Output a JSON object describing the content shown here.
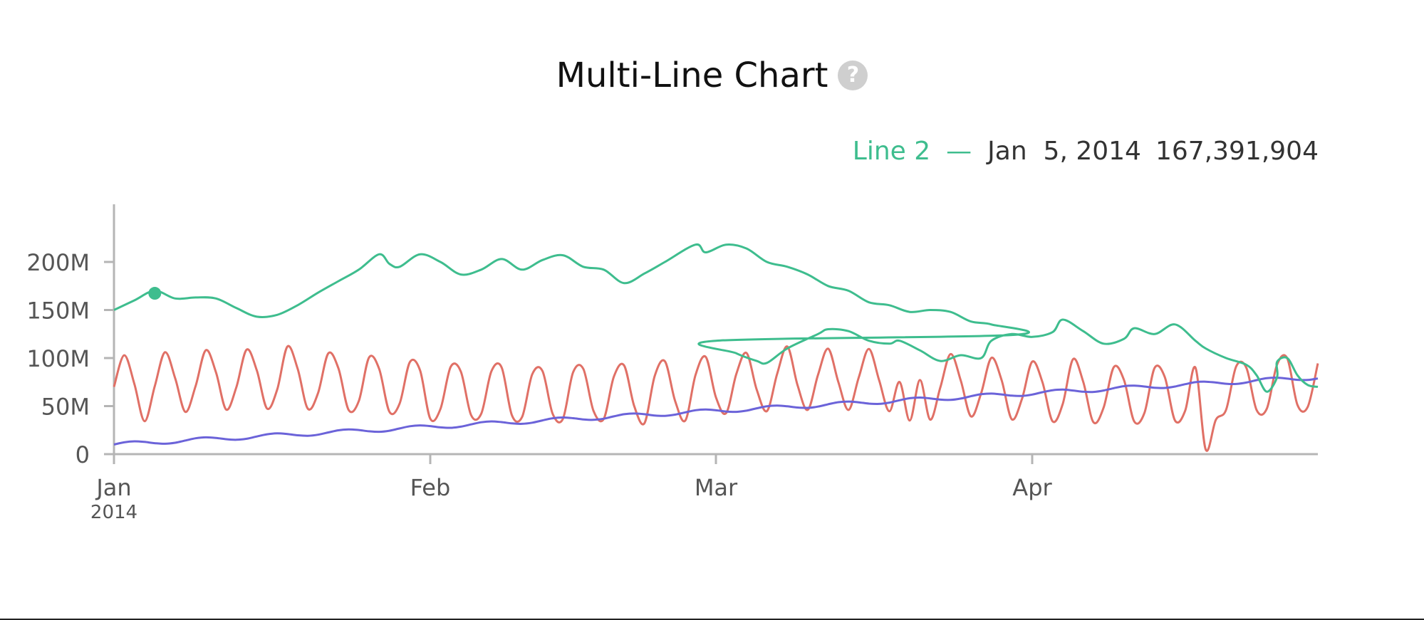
{
  "chart_data": {
    "type": "line",
    "title": "Multi-Line Chart",
    "xlabel": "",
    "ylabel": "",
    "ylim": [
      0,
      260000000
    ],
    "xlim": [
      "2014-01-01",
      "2014-04-29"
    ],
    "grid": false,
    "x_ticks": [
      {
        "date": "2014-01-01",
        "label": "Jan",
        "sublabel": "2014"
      },
      {
        "date": "2014-02-01",
        "label": "Feb",
        "sublabel": ""
      },
      {
        "date": "2014-03-01",
        "label": "Mar",
        "sublabel": ""
      },
      {
        "date": "2014-04-01",
        "label": "Apr",
        "sublabel": ""
      }
    ],
    "y_ticks": [
      {
        "value": 0,
        "label": "0"
      },
      {
        "value": 50000000,
        "label": "50M"
      },
      {
        "value": 100000000,
        "label": "100M"
      },
      {
        "value": 150000000,
        "label": "150M"
      },
      {
        "value": 200000000,
        "label": "200M"
      }
    ],
    "series": [
      {
        "color": "#3ebd8e",
        "points": [
          [
            "2014-01-01",
            150
          ],
          [
            "2014-01-03",
            160
          ],
          [
            "2014-01-05",
            170
          ],
          [
            "2014-01-07",
            162
          ],
          [
            "2014-01-09",
            163
          ],
          [
            "2014-01-11",
            162
          ],
          [
            "2014-01-13",
            152
          ],
          [
            "2014-01-15",
            143
          ],
          [
            "2014-01-17",
            145
          ],
          [
            "2014-01-19",
            155
          ],
          [
            "2014-01-21",
            168
          ],
          [
            "2014-01-23",
            180
          ],
          [
            "2014-01-25",
            192
          ],
          [
            "2014-01-27",
            208
          ],
          [
            "2014-01-28",
            198
          ],
          [
            "2014-01-29",
            195
          ],
          [
            "2014-01-31",
            208
          ],
          [
            "2014-02-02",
            200
          ],
          [
            "2014-02-04",
            187
          ],
          [
            "2014-02-06",
            192
          ],
          [
            "2014-02-08",
            203
          ],
          [
            "2014-02-10",
            192
          ],
          [
            "2014-02-12",
            202
          ],
          [
            "2014-02-14",
            207
          ],
          [
            "2014-02-16",
            195
          ],
          [
            "2014-02-18",
            192
          ],
          [
            "2014-02-20",
            178
          ],
          [
            "2014-02-22",
            188
          ],
          [
            "2014-02-24",
            200
          ],
          [
            "2014-02-27",
            218
          ],
          [
            "2014-02-28",
            210
          ],
          [
            "2014-03-02",
            218
          ],
          [
            "2014-03-04",
            214
          ],
          [
            "2014-03-06",
            200
          ],
          [
            "2014-03-08",
            195
          ],
          [
            "2014-03-10",
            187
          ],
          [
            "2014-03-12",
            175
          ],
          [
            "2014-03-14",
            170
          ],
          [
            "2014-03-16",
            158
          ],
          [
            "2014-03-18",
            155
          ],
          [
            "2014-03-20",
            148
          ],
          [
            "2014-03-22",
            150
          ],
          [
            "2014-03-24",
            148
          ],
          [
            "2014-03-26",
            138
          ],
          [
            "2014-03-28",
            135
          ],
          [
            "2014-03-30",
            124
          ],
          [
            "2014-01-30",
            110
          ]
        ]
      },
      {
        "color": "#e07066",
        "points": []
      },
      {
        "color": "#6b63d9",
        "points": []
      }
    ],
    "hover": {
      "series_label": "Line 2",
      "date_label": "Jan  5, 2014",
      "value_label": "167,391,904",
      "date": "2014-01-05",
      "value": 167391904
    }
  },
  "icons": {
    "help": "question-circle-icon"
  },
  "help_glyph": "?"
}
